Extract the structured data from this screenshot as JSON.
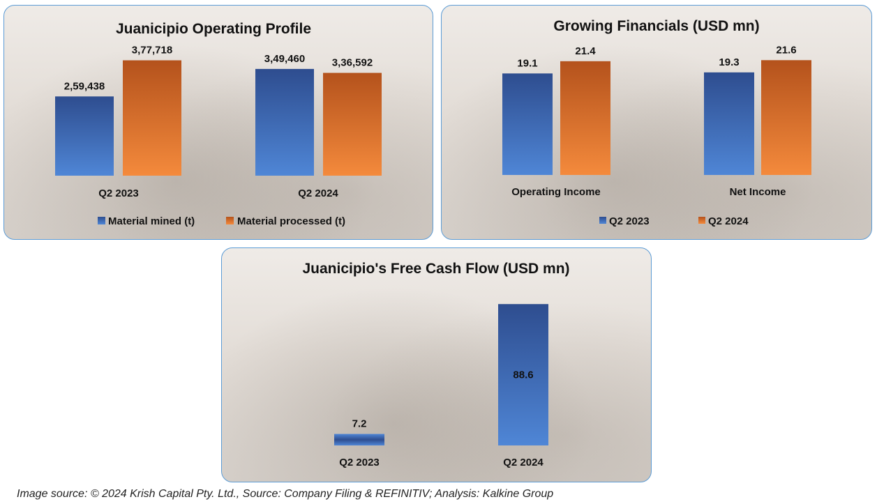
{
  "colors": {
    "blue_top": "#2e4d8f",
    "blue_bottom": "#4f86d6",
    "orange_top": "#b4521c",
    "orange_bottom": "#f48a3c"
  },
  "chart_data": [
    {
      "type": "bar",
      "title": "Juanicipio Operating Profile",
      "categories": [
        "Q2 2023",
        "Q2 2024"
      ],
      "series": [
        {
          "name": "Material mined (t)",
          "values": [
            259438,
            349460
          ],
          "labels": [
            "2,59,438",
            "3,49,460"
          ],
          "color": "blue"
        },
        {
          "name": "Material processed (t)",
          "values": [
            377718,
            336592
          ],
          "labels": [
            "3,77,718",
            "3,36,592"
          ],
          "color": "orange"
        }
      ],
      "ylim": [
        0,
        420000
      ],
      "legend": "bottom"
    },
    {
      "type": "bar",
      "title": "Growing Financials (USD mn)",
      "categories": [
        "Operating Income",
        "Net Income"
      ],
      "series": [
        {
          "name": "Q2 2023",
          "values": [
            19.1,
            19.3
          ],
          "labels": [
            "19.1",
            "19.3"
          ],
          "color": "blue"
        },
        {
          "name": "Q2 2024",
          "values": [
            21.4,
            21.6
          ],
          "labels": [
            "21.4",
            "21.6"
          ],
          "color": "orange"
        }
      ],
      "ylim": [
        0,
        24
      ],
      "legend": "bottom"
    },
    {
      "type": "bar",
      "title": "Juanicipio's Free Cash Flow (USD mn)",
      "categories": [
        "Q2 2023",
        "Q2 2024"
      ],
      "series": [
        {
          "values": [
            7.2,
            88.6
          ],
          "labels": [
            "7.2",
            "88.6"
          ],
          "color": "blue"
        }
      ],
      "ylim": [
        0,
        90
      ],
      "legend": "none"
    }
  ],
  "footer": {
    "source": "Image source: © 2024 Krish Capital Pty. Ltd., Source: Company Filing & REFINITIV; Analysis: Kalkine Group"
  }
}
